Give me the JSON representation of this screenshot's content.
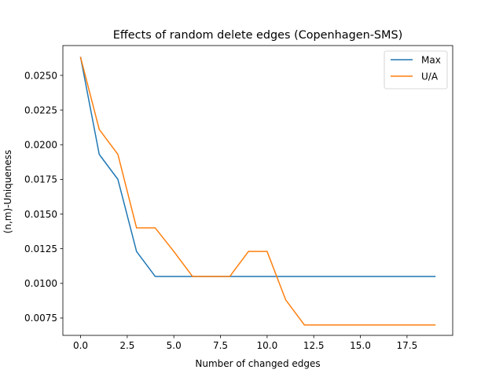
{
  "chart_data": {
    "type": "line",
    "title": "Effects of random delete edges (Copenhagen-SMS)",
    "xlabel": "Number of changed edges",
    "ylabel": "(n,m)-Uniqueness",
    "xlim": [
      -0.95,
      19.95
    ],
    "ylim": [
      0.00625,
      0.02715
    ],
    "xticks": [
      0.0,
      2.5,
      5.0,
      7.5,
      10.0,
      12.5,
      15.0,
      17.5
    ],
    "xtick_labels": [
      "0.0",
      "2.5",
      "5.0",
      "7.5",
      "10.0",
      "12.5",
      "15.0",
      "17.5"
    ],
    "yticks": [
      0.0075,
      0.01,
      0.0125,
      0.015,
      0.0175,
      0.02,
      0.0225,
      0.025
    ],
    "ytick_labels": [
      "0.0075",
      "0.0100",
      "0.0125",
      "0.0150",
      "0.0175",
      "0.0200",
      "0.0225",
      "0.0250"
    ],
    "grid": false,
    "legend_position": "top-right",
    "x": [
      0,
      1,
      2,
      3,
      4,
      5,
      6,
      7,
      8,
      9,
      10,
      11,
      12,
      13,
      14,
      15,
      16,
      17,
      18,
      19
    ],
    "series": [
      {
        "name": "Max",
        "color": "#1f77b4",
        "values": [
          0.0263,
          0.0193,
          0.0175,
          0.0123,
          0.0105,
          0.0105,
          0.0105,
          0.0105,
          0.0105,
          0.0105,
          0.0105,
          0.0105,
          0.0105,
          0.0105,
          0.0105,
          0.0105,
          0.0105,
          0.0105,
          0.0105,
          0.0105
        ]
      },
      {
        "name": "U/A",
        "color": "#ff7f0e",
        "values": [
          0.0263,
          0.0211,
          0.0193,
          0.014,
          0.014,
          0.0123,
          0.0105,
          0.0105,
          0.0105,
          0.0123,
          0.0123,
          0.0088,
          0.007,
          0.007,
          0.007,
          0.007,
          0.007,
          0.007,
          0.007,
          0.007
        ]
      }
    ]
  }
}
